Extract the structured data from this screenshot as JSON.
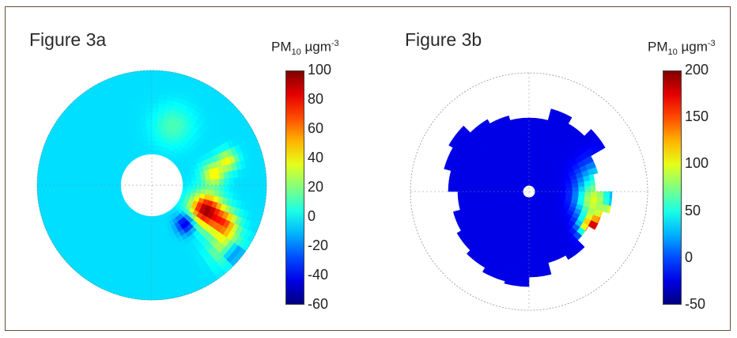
{
  "chart_data": [
    {
      "type": "heatmap",
      "subtype": "polar",
      "title": "Figure 3a",
      "colorbar_label": {
        "main": "PM",
        "sub": "10",
        "unit": " µgm",
        "sup": "-3"
      },
      "colorbar_ticks": [
        "100",
        "80",
        "60",
        "40",
        "20",
        "0",
        "-20",
        "-40",
        "-60"
      ],
      "zlim": [
        -60,
        100
      ],
      "background_value": -5,
      "hotspots": [
        {
          "theta_deg": 115,
          "r": 0.52,
          "value": 95,
          "spread": 0.1
        },
        {
          "theta_deg": 118,
          "r": 0.72,
          "value": 55,
          "spread": 0.08
        },
        {
          "theta_deg": 80,
          "r": 0.55,
          "value": 42,
          "spread": 0.07
        },
        {
          "theta_deg": 72,
          "r": 0.7,
          "value": 38,
          "spread": 0.06
        },
        {
          "theta_deg": 130,
          "r": 0.85,
          "value": 35,
          "spread": 0.1
        },
        {
          "theta_deg": 138,
          "r": 0.45,
          "value": -55,
          "spread": 0.06
        },
        {
          "theta_deg": 130,
          "r": 0.92,
          "value": -50,
          "spread": 0.06
        },
        {
          "theta_deg": 20,
          "r": 0.55,
          "value": 12,
          "spread": 0.12
        }
      ],
      "inner_hole_radius": 0.27
    },
    {
      "type": "heatmap",
      "subtype": "polar",
      "title": "Figure 3b",
      "colorbar_label": {
        "main": "PM",
        "sub": "10",
        "unit": " µgm",
        "sup": "-3"
      },
      "colorbar_ticks": [
        "200",
        "150",
        "100",
        "50",
        "0",
        "-50"
      ],
      "zlim": [
        -50,
        200
      ],
      "background_value": -25,
      "hotspots": [
        {
          "theta_deg": 120,
          "r": 0.62,
          "value": 175,
          "spread": 0.07
        },
        {
          "theta_deg": 108,
          "r": 0.72,
          "value": 200,
          "spread": 0.05
        },
        {
          "theta_deg": 100,
          "r": 0.55,
          "value": 80,
          "spread": 0.1
        },
        {
          "theta_deg": 80,
          "r": 0.6,
          "value": 40,
          "spread": 0.12
        }
      ],
      "inner_hole_radius": 0.05
    }
  ]
}
